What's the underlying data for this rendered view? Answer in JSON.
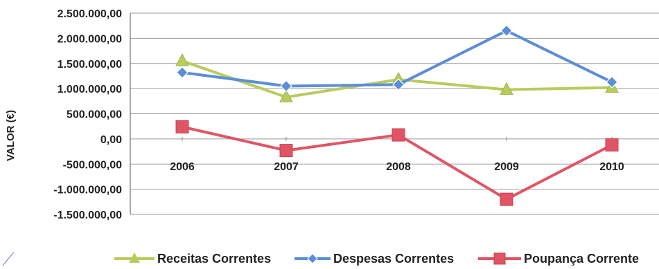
{
  "chart_data": {
    "type": "line",
    "title": "",
    "xlabel": "",
    "ylabel": "VALOR (€)",
    "categories": [
      "2006",
      "2007",
      "2008",
      "2009",
      "2010"
    ],
    "ylim": [
      -1500000,
      2500000
    ],
    "yticks": [
      2500000,
      2000000,
      1500000,
      1000000,
      500000,
      0,
      -500000,
      -1000000,
      -1500000
    ],
    "ytick_labels": [
      "2.500.000,00",
      "2.000.000,00",
      "1.500.000,00",
      "1.000.000,00",
      "500.000,00",
      "0,00",
      "-500.000,00",
      "-1.000.000,00",
      "-1.500.000,00"
    ],
    "grid": true,
    "legend_position": "bottom",
    "series": [
      {
        "name": "Receitas Correntes",
        "color": "#b7cc5c",
        "marker": "triangle",
        "values": [
          1550000,
          830000,
          1180000,
          980000,
          1020000
        ]
      },
      {
        "name": "Despesas Correntes",
        "color": "#5b8ed6",
        "marker": "diamond",
        "values": [
          1320000,
          1050000,
          1080000,
          2150000,
          1130000
        ]
      },
      {
        "name": "Poupança Corrente",
        "color": "#e05565",
        "marker": "square",
        "values": [
          240000,
          -230000,
          80000,
          -1200000,
          -120000
        ]
      }
    ]
  }
}
